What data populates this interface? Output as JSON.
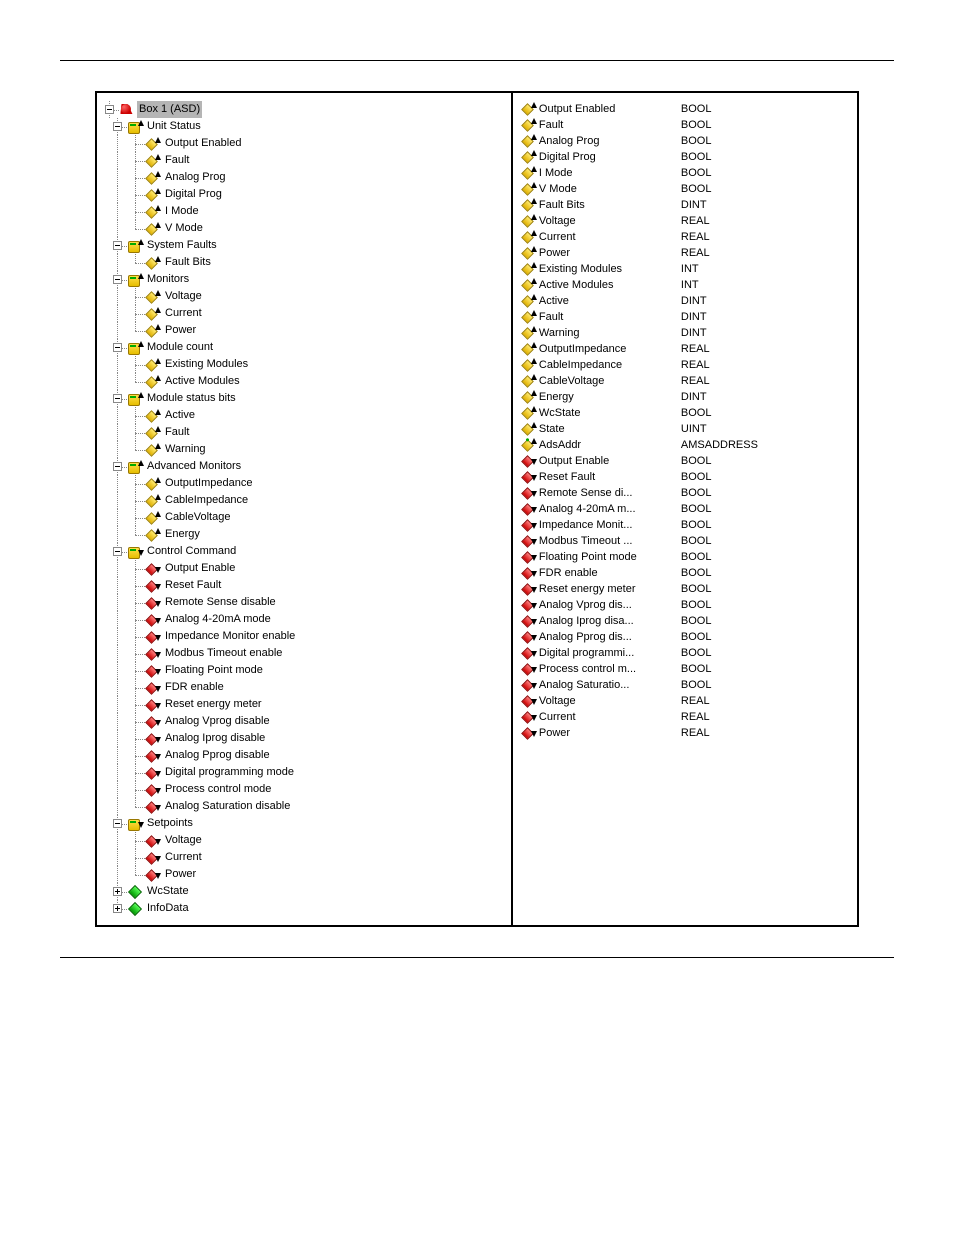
{
  "colors": {
    "input_diamond": "#e0b000",
    "output_diamond": "#cc0000",
    "group_fill": "#ffde4a",
    "state_fill": "#0a0",
    "box_fill": "#c00",
    "highlight_bg": "#b5b5b5",
    "tree_line": "#888888"
  },
  "tree": {
    "root": {
      "label": "Box 1 (ASD)",
      "icon": "box",
      "selected": true
    },
    "groups": [
      {
        "label": "Unit Status",
        "dir": "in",
        "children": [
          {
            "label": "Output Enabled",
            "dir": "in"
          },
          {
            "label": "Fault",
            "dir": "in"
          },
          {
            "label": "Analog Prog",
            "dir": "in"
          },
          {
            "label": "Digital Prog",
            "dir": "in"
          },
          {
            "label": "I Mode",
            "dir": "in"
          },
          {
            "label": "V Mode",
            "dir": "in"
          }
        ]
      },
      {
        "label": "System Faults",
        "dir": "in",
        "children": [
          {
            "label": "Fault Bits",
            "dir": "in"
          }
        ]
      },
      {
        "label": "Monitors",
        "dir": "in",
        "children": [
          {
            "label": "Voltage",
            "dir": "in"
          },
          {
            "label": "Current",
            "dir": "in"
          },
          {
            "label": "Power",
            "dir": "in"
          }
        ]
      },
      {
        "label": "Module count",
        "dir": "in",
        "children": [
          {
            "label": "Existing Modules",
            "dir": "in"
          },
          {
            "label": "Active Modules",
            "dir": "in"
          }
        ]
      },
      {
        "label": "Module status bits",
        "dir": "in",
        "children": [
          {
            "label": "Active",
            "dir": "in"
          },
          {
            "label": "Fault",
            "dir": "in"
          },
          {
            "label": "Warning",
            "dir": "in"
          }
        ]
      },
      {
        "label": "Advanced Monitors",
        "dir": "in",
        "children": [
          {
            "label": "OutputImpedance",
            "dir": "in"
          },
          {
            "label": "CableImpedance",
            "dir": "in"
          },
          {
            "label": "CableVoltage",
            "dir": "in"
          },
          {
            "label": "Energy",
            "dir": "in"
          }
        ]
      },
      {
        "label": "Control Command",
        "dir": "out",
        "children": [
          {
            "label": "Output Enable",
            "dir": "out"
          },
          {
            "label": "Reset Fault",
            "dir": "out"
          },
          {
            "label": "Remote Sense disable",
            "dir": "out"
          },
          {
            "label": "Analog 4-20mA mode",
            "dir": "out"
          },
          {
            "label": "Impedance Monitor enable",
            "dir": "out"
          },
          {
            "label": "Modbus Timeout enable",
            "dir": "out"
          },
          {
            "label": "Floating Point mode",
            "dir": "out"
          },
          {
            "label": "FDR enable",
            "dir": "out"
          },
          {
            "label": "Reset energy meter",
            "dir": "out"
          },
          {
            "label": "Analog Vprog disable",
            "dir": "out"
          },
          {
            "label": "Analog Iprog disable",
            "dir": "out"
          },
          {
            "label": "Analog Pprog disable",
            "dir": "out"
          },
          {
            "label": "Digital programming mode",
            "dir": "out"
          },
          {
            "label": "Process control mode",
            "dir": "out"
          },
          {
            "label": "Analog Saturation disable",
            "dir": "out"
          }
        ]
      },
      {
        "label": "Setpoints",
        "dir": "out",
        "children": [
          {
            "label": "Voltage",
            "dir": "out"
          },
          {
            "label": "Current",
            "dir": "out"
          },
          {
            "label": "Power",
            "dir": "out"
          }
        ]
      },
      {
        "label": "WcState",
        "icon": "state",
        "collapsed": true
      },
      {
        "label": "InfoData",
        "icon": "state",
        "collapsed": true
      }
    ]
  },
  "vars": [
    {
      "name": "Output Enabled",
      "dir": "in",
      "type": "BOOL"
    },
    {
      "name": "Fault",
      "dir": "in",
      "type": "BOOL"
    },
    {
      "name": "Analog Prog",
      "dir": "in",
      "type": "BOOL"
    },
    {
      "name": "Digital Prog",
      "dir": "in",
      "type": "BOOL"
    },
    {
      "name": "I Mode",
      "dir": "in",
      "type": "BOOL"
    },
    {
      "name": "V Mode",
      "dir": "in",
      "type": "BOOL"
    },
    {
      "name": "Fault Bits",
      "dir": "in",
      "type": "DINT"
    },
    {
      "name": "Voltage",
      "dir": "in",
      "type": "REAL"
    },
    {
      "name": "Current",
      "dir": "in",
      "type": "REAL"
    },
    {
      "name": "Power",
      "dir": "in",
      "type": "REAL"
    },
    {
      "name": "Existing Modules",
      "dir": "in",
      "type": "INT"
    },
    {
      "name": "Active Modules",
      "dir": "in",
      "type": "INT"
    },
    {
      "name": "Active",
      "dir": "in",
      "type": "DINT"
    },
    {
      "name": "Fault",
      "dir": "in",
      "type": "DINT"
    },
    {
      "name": "Warning",
      "dir": "in",
      "type": "DINT"
    },
    {
      "name": "OutputImpedance",
      "dir": "in",
      "type": "REAL"
    },
    {
      "name": "CableImpedance",
      "dir": "in",
      "type": "REAL"
    },
    {
      "name": "CableVoltage",
      "dir": "in",
      "type": "REAL"
    },
    {
      "name": "Energy",
      "dir": "in",
      "type": "DINT"
    },
    {
      "name": "WcState",
      "dir": "in",
      "type": "BOOL"
    },
    {
      "name": "State",
      "dir": "in",
      "type": "UINT"
    },
    {
      "name": "AdsAddr",
      "dir": "in",
      "type": "AMSADDRESS",
      "ads": true
    },
    {
      "name": "Output Enable",
      "dir": "out",
      "type": "BOOL"
    },
    {
      "name": "Reset Fault",
      "dir": "out",
      "type": "BOOL"
    },
    {
      "name": "Remote Sense di...",
      "dir": "out",
      "type": "BOOL"
    },
    {
      "name": "Analog 4-20mA m...",
      "dir": "out",
      "type": "BOOL"
    },
    {
      "name": "Impedance Monit...",
      "dir": "out",
      "type": "BOOL"
    },
    {
      "name": "Modbus Timeout ...",
      "dir": "out",
      "type": "BOOL"
    },
    {
      "name": "Floating Point mode",
      "dir": "out",
      "type": "BOOL"
    },
    {
      "name": "FDR enable",
      "dir": "out",
      "type": "BOOL"
    },
    {
      "name": "Reset energy meter",
      "dir": "out",
      "type": "BOOL"
    },
    {
      "name": "Analog Vprog dis...",
      "dir": "out",
      "type": "BOOL"
    },
    {
      "name": "Analog Iprog disa...",
      "dir": "out",
      "type": "BOOL"
    },
    {
      "name": "Analog Pprog dis...",
      "dir": "out",
      "type": "BOOL"
    },
    {
      "name": "Digital programmi...",
      "dir": "out",
      "type": "BOOL"
    },
    {
      "name": "Process control m...",
      "dir": "out",
      "type": "BOOL"
    },
    {
      "name": "Analog Saturatio...",
      "dir": "out",
      "type": "BOOL"
    },
    {
      "name": "Voltage",
      "dir": "out",
      "type": "REAL"
    },
    {
      "name": "Current",
      "dir": "out",
      "type": "REAL"
    },
    {
      "name": "Power",
      "dir": "out",
      "type": "REAL"
    }
  ]
}
